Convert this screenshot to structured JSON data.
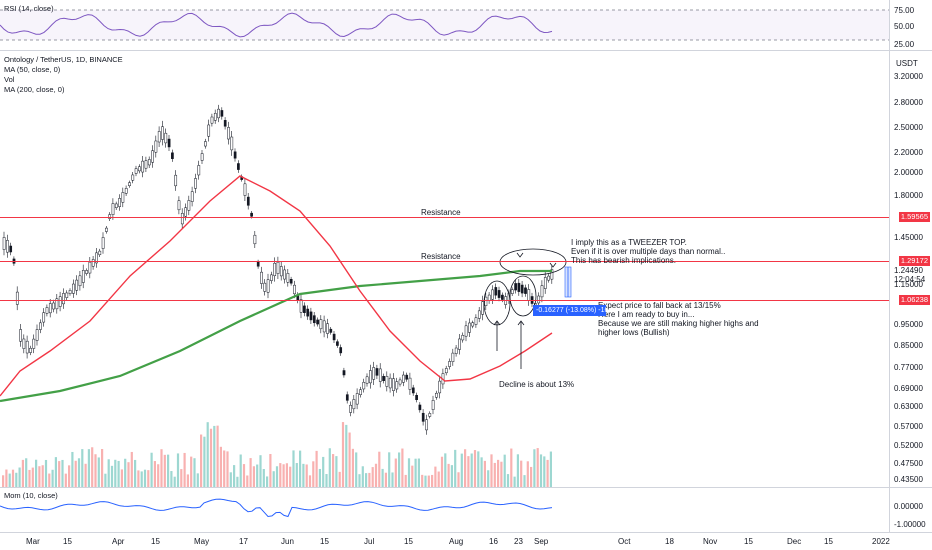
{
  "rsi_panel": {
    "title": "RSI (14, close)",
    "ticks": [
      "75.00",
      "50.00",
      "25.00"
    ]
  },
  "main_panel": {
    "symbol_title": "Ontology / TetherUS, 1D, BINANCE",
    "indicators": [
      "MA (50, close, 0)",
      "Vol",
      "MA (200, close, 0)"
    ],
    "currency": "USDT",
    "price_ticks": [
      "3.20000",
      "2.80000",
      "2.50000",
      "2.20000",
      "2.00000",
      "1.80000",
      "1.45000",
      "1.15000",
      "0.95000",
      "0.85000",
      "0.77000",
      "0.69000",
      "0.63000",
      "0.57000",
      "0.52000",
      "0.47500",
      "0.43500"
    ],
    "price_tags": {
      "resistance_high": "1.59565",
      "resistance_mid": "1.29172",
      "current_price": "1.24490",
      "countdown": "12:04:54",
      "support": "1.06238"
    },
    "annotations": {
      "resistance_label_1": "Resistance",
      "resistance_label_2": "Resistance",
      "tweezer_note": [
        "I imply this as a TWEEZER TOP.",
        "Even if it is over multiple days than normal..",
        "This has bearish implications."
      ],
      "expect_note": [
        "Expect price to fall back at 13/15%",
        "Here I am ready to buy in...",
        "Because we are still making higher highs and",
        "higher lows (Bullish)"
      ],
      "decline_note": "Decline is about 13%",
      "measure_label": "-0.16277 (-13.08%) -1627"
    },
    "colors": {
      "bull": "#26a69a",
      "bear": "#ef5350",
      "ma50": "#f23645",
      "ma200": "#43a047",
      "resistance": "#f23645",
      "measure": "#2962ff"
    }
  },
  "mom_panel": {
    "title": "Mom (10, close)",
    "ticks": [
      "0.00000",
      "-1.00000"
    ]
  },
  "time_axis": [
    "Mar",
    "15",
    "Apr",
    "15",
    "May",
    "17",
    "Jun",
    "15",
    "Jul",
    "15",
    "Aug",
    "16",
    "23",
    "Sep",
    "Oct",
    "18",
    "Nov",
    "15",
    "Dec",
    "15",
    "2022"
  ],
  "chart_data": {
    "type": "candlestick",
    "title": "Ontology / TetherUS, 1D, BINANCE",
    "scale": "log",
    "y_range": [
      0.435,
      3.2
    ],
    "horizontal_levels": [
      1.59565,
      1.29172,
      1.06238
    ],
    "last_price": 1.2449,
    "measured_decline_percent": -13.08
  }
}
